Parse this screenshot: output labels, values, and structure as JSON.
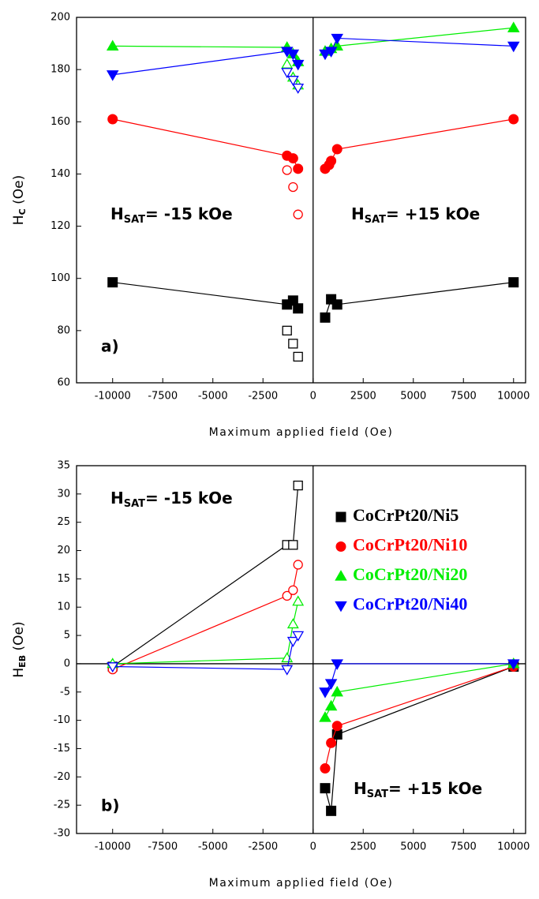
{
  "chart_data": [
    {
      "type": "line",
      "panel_label": "a)",
      "x_label": "Maximum applied field (Oe)",
      "y_label": {
        "main": "H",
        "sub": "C",
        "unit": " (Oe)"
      },
      "xlim": [
        -11800,
        10600
      ],
      "ylim": [
        60,
        200
      ],
      "xticks": [
        -10000,
        -7500,
        -5000,
        -2500,
        0,
        2500,
        5000,
        7500,
        10000
      ],
      "yticks": [
        60,
        80,
        100,
        120,
        140,
        160,
        180,
        200
      ],
      "vline": 0,
      "annotations": [
        {
          "main": "H",
          "sub": "SAT",
          "rest": "= -15 kOe"
        },
        {
          "main": "H",
          "sub": "SAT",
          "rest": "= +15 kOe"
        }
      ],
      "series": [
        {
          "color": "#000000",
          "marker": "square",
          "filled": true,
          "line": true,
          "x": [
            -10000,
            -1300,
            -1000,
            -750,
            null,
            600,
            900,
            1200,
            10000
          ],
          "values": [
            98.5,
            90,
            91.5,
            88.5,
            null,
            85,
            92,
            90,
            98.5
          ]
        },
        {
          "color": "#000000",
          "marker": "square",
          "filled": false,
          "line": false,
          "x": [
            -1300,
            -1000,
            -750
          ],
          "values": [
            80,
            75,
            70
          ]
        },
        {
          "color": "#ff0000",
          "marker": "circle",
          "filled": true,
          "line": true,
          "x": [
            -10000,
            -1300,
            -1000,
            -750,
            null,
            600,
            800,
            900,
            1200,
            10000
          ],
          "values": [
            161,
            147,
            146,
            142,
            null,
            142,
            143.5,
            145,
            149.5,
            161
          ]
        },
        {
          "color": "#ff0000",
          "marker": "circle",
          "filled": false,
          "line": false,
          "x": [
            -1300,
            -1000,
            -750
          ],
          "values": [
            141.5,
            135,
            124.5
          ]
        },
        {
          "color": "#00ee00",
          "marker": "triangle-up",
          "filled": true,
          "line": true,
          "x": [
            -10000,
            -1300,
            -1000,
            -750,
            null,
            600,
            900,
            1200,
            10000
          ],
          "values": [
            189,
            188.5,
            186,
            183,
            null,
            187,
            188,
            189,
            196
          ]
        },
        {
          "color": "#00ee00",
          "marker": "triangle-up",
          "filled": false,
          "line": false,
          "x": [
            -1300,
            -1000,
            -750
          ],
          "values": [
            182,
            177,
            174
          ]
        },
        {
          "color": "#0000ff",
          "marker": "triangle-down",
          "filled": true,
          "line": true,
          "x": [
            -10000,
            -1300,
            -1000,
            -750,
            null,
            600,
            900,
            1200,
            10000
          ],
          "values": [
            178,
            187,
            186,
            182,
            null,
            186,
            187,
            192,
            189
          ]
        },
        {
          "color": "#0000ff",
          "marker": "triangle-down",
          "filled": false,
          "line": false,
          "x": [
            -1300,
            -1000,
            -750
          ],
          "values": [
            179,
            176,
            173
          ]
        }
      ]
    },
    {
      "type": "line",
      "panel_label": "b)",
      "x_label": "Maximum applied field (Oe)",
      "y_label": {
        "main": "H",
        "sub": "EB",
        "unit": " (Oe)"
      },
      "xlim": [
        -11800,
        10600
      ],
      "ylim": [
        -30,
        35
      ],
      "xticks": [
        -10000,
        -7500,
        -5000,
        -2500,
        0,
        2500,
        5000,
        7500,
        10000
      ],
      "yticks": [
        -30,
        -25,
        -20,
        -15,
        -10,
        -5,
        0,
        5,
        10,
        15,
        20,
        25,
        30,
        35
      ],
      "vline": 0,
      "hline": 0,
      "legend": "upper right",
      "annotations": [
        {
          "main": "H",
          "sub": "SAT",
          "rest": "= -15 kOe"
        },
        {
          "main": "H",
          "sub": "SAT",
          "rest": "= +15 kOe"
        }
      ],
      "series": [
        {
          "name": "CoCrPt20/Ni5",
          "color": "#000000",
          "marker": "square",
          "filled": true,
          "line": true,
          "x": [
            600,
            900,
            1200,
            10000
          ],
          "values": [
            -22,
            -26,
            -12.5,
            -0.5
          ]
        },
        {
          "name": "CoCrPt20/Ni10",
          "color": "#ff0000",
          "marker": "circle",
          "filled": true,
          "line": true,
          "x": [
            600,
            900,
            1200,
            10000
          ],
          "values": [
            -18.5,
            -14,
            -11,
            -0.5
          ]
        },
        {
          "name": "CoCrPt20/Ni20",
          "color": "#00ee00",
          "marker": "triangle-up",
          "filled": true,
          "line": true,
          "x": [
            600,
            900,
            1200,
            10000
          ],
          "values": [
            -9.5,
            -7.5,
            -5,
            0
          ]
        },
        {
          "name": "CoCrPt20/Ni40",
          "color": "#0000ff",
          "marker": "triangle-down",
          "filled": true,
          "line": true,
          "x": [
            600,
            900,
            1200,
            10000
          ],
          "values": [
            -5,
            -3.5,
            0,
            0
          ]
        },
        {
          "color": "#000000",
          "marker": "square",
          "filled": false,
          "line": true,
          "x": [
            -10000,
            -1300,
            -1000,
            -750
          ],
          "values": [
            -0.5,
            21,
            21,
            31.5
          ]
        },
        {
          "color": "#ff0000",
          "marker": "circle",
          "filled": false,
          "line": true,
          "x": [
            -10000,
            -1300,
            -1000,
            -750
          ],
          "values": [
            -1,
            12,
            13,
            17.5
          ]
        },
        {
          "color": "#00ee00",
          "marker": "triangle-up",
          "filled": false,
          "line": true,
          "x": [
            -10000,
            -1300,
            -1000,
            -750
          ],
          "values": [
            0,
            1,
            7,
            11
          ]
        },
        {
          "color": "#0000ff",
          "marker": "triangle-down",
          "filled": false,
          "line": true,
          "x": [
            -10000,
            -1300,
            -1000,
            -750
          ],
          "values": [
            -0.5,
            -1,
            4,
            5
          ]
        }
      ]
    }
  ]
}
